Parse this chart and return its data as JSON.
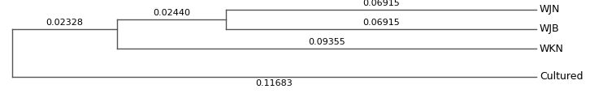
{
  "taxa": [
    "WJN",
    "WJB",
    "WKN",
    "Cultured"
  ],
  "branch_labels": {
    "root_to_internal1": "0.02328",
    "internal1_to_internal2": "0.02440",
    "internal2_to_WJN": "0.06915",
    "internal2_to_WJB": "0.06915",
    "internal1_to_WKN": "0.09355",
    "root_to_Cultured": "0.11683"
  },
  "line_color": "#555555",
  "label_color": "#000000",
  "background_color": "#ffffff",
  "label_fontsize": 9,
  "branch_label_fontsize": 8,
  "figsize": [
    7.42,
    1.31
  ],
  "dpi": 100
}
